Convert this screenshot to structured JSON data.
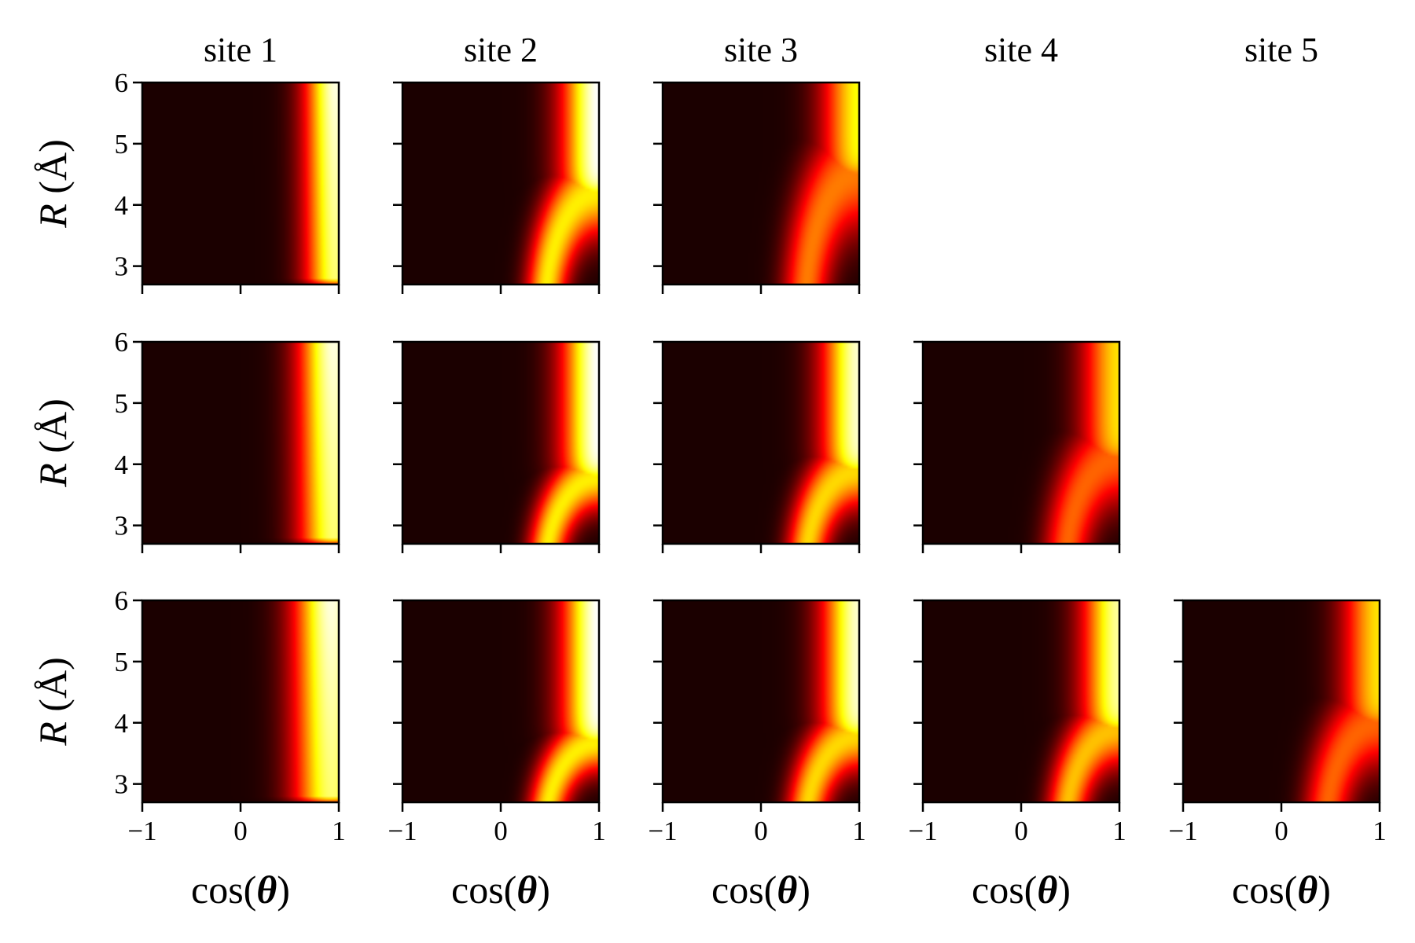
{
  "figure": {
    "column_titles": [
      "site 1",
      "site 2",
      "site 3",
      "site 4",
      "site 5"
    ],
    "xlabel_prefix": "cos(",
    "xlabel_symbol": "θ",
    "xlabel_suffix": ")",
    "ylabel_symbol": "R",
    "ylabel_unit": " (Å)",
    "colormap": "hot",
    "colormap_stops": [
      "#000000",
      "#e60000",
      "#ffd000",
      "#ffffff"
    ]
  },
  "chart_data": {
    "type": "heatmap",
    "layout": "3 rows x 5 columns grid; lower-left triangle populated",
    "xlim": [
      -1,
      1
    ],
    "ylim": [
      2.7,
      6
    ],
    "xticks": [
      -1,
      0,
      1
    ],
    "xtick_labels": [
      "−1",
      "0",
      "1"
    ],
    "yticks": [
      3,
      4,
      5,
      6
    ],
    "ytick_labels": [
      "3",
      "4",
      "5",
      "6"
    ],
    "xlabel": "cos(θ)",
    "ylabel": "R (Å)",
    "panels": [
      {
        "row": 0,
        "col": 0,
        "title": "site 1",
        "pattern": "band",
        "intensity": 1.0,
        "center": 0.97,
        "width": 0.22
      },
      {
        "row": 0,
        "col": 1,
        "title": "site 2",
        "pattern": "split",
        "intensity": 1.0,
        "split_R": 4.1,
        "arc_width": 0.13
      },
      {
        "row": 0,
        "col": 2,
        "title": "site 3",
        "pattern": "split",
        "intensity": 0.75,
        "split_R": 4.4,
        "arc_width": 0.15
      },
      {
        "row": 1,
        "col": 0,
        "pattern": "band",
        "intensity": 1.0,
        "center": 0.95,
        "width": 0.25
      },
      {
        "row": 1,
        "col": 1,
        "pattern": "split",
        "intensity": 1.0,
        "split_R": 3.7,
        "arc_width": 0.12
      },
      {
        "row": 1,
        "col": 2,
        "pattern": "split",
        "intensity": 0.95,
        "split_R": 3.8,
        "arc_width": 0.13
      },
      {
        "row": 1,
        "col": 3,
        "pattern": "split",
        "intensity": 0.7,
        "split_R": 4.0,
        "arc_width": 0.15
      },
      {
        "row": 2,
        "col": 0,
        "pattern": "band",
        "intensity": 1.0,
        "center": 0.93,
        "width": 0.27
      },
      {
        "row": 2,
        "col": 1,
        "pattern": "split",
        "intensity": 1.0,
        "split_R": 3.6,
        "arc_width": 0.12
      },
      {
        "row": 2,
        "col": 2,
        "pattern": "split",
        "intensity": 0.95,
        "split_R": 3.7,
        "arc_width": 0.13
      },
      {
        "row": 2,
        "col": 3,
        "pattern": "split",
        "intensity": 0.9,
        "split_R": 3.8,
        "arc_width": 0.13
      },
      {
        "row": 2,
        "col": 4,
        "pattern": "split",
        "intensity": 0.7,
        "split_R": 3.9,
        "arc_width": 0.15
      }
    ]
  }
}
